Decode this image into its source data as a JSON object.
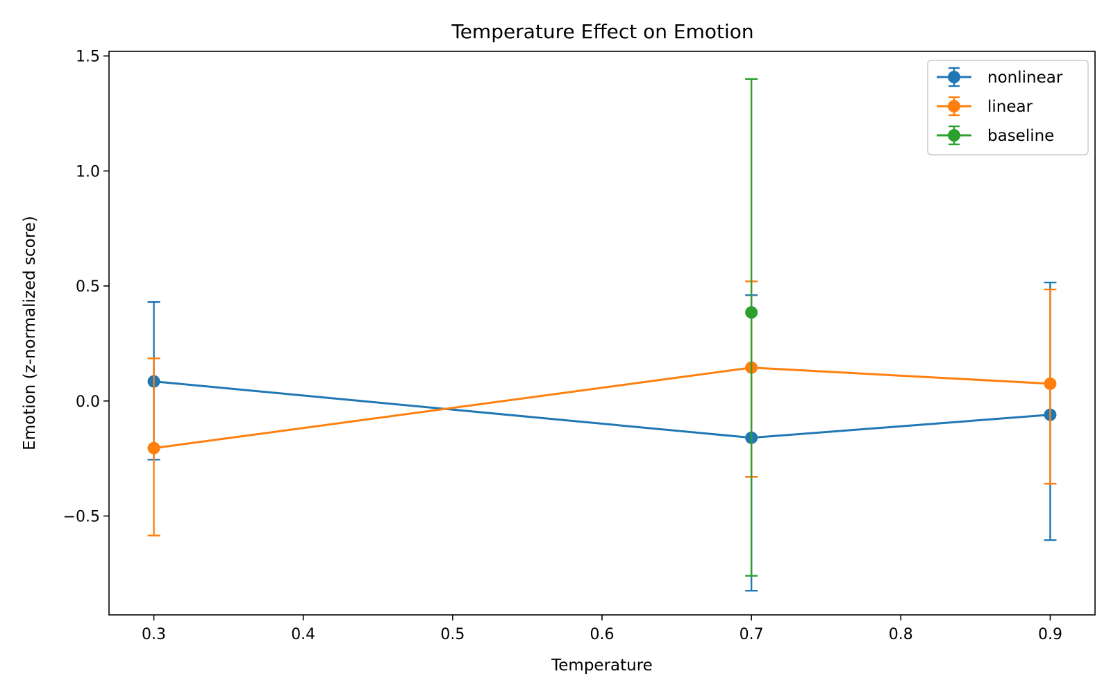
{
  "chart_data": {
    "type": "line",
    "title": "Temperature Effect on Emotion",
    "xlabel": "Temperature",
    "ylabel": "Emotion (z-normalized score)",
    "xlim": [
      0.27,
      0.93
    ],
    "ylim": [
      -0.93,
      1.52
    ],
    "xticks": [
      0.3,
      0.4,
      0.5,
      0.6,
      0.7,
      0.8,
      0.9
    ],
    "xtick_labels": [
      "0.3",
      "0.4",
      "0.5",
      "0.6",
      "0.7",
      "0.8",
      "0.9"
    ],
    "yticks": [
      -0.5,
      0.0,
      0.5,
      1.0,
      1.5
    ],
    "ytick_labels": [
      "−0.5",
      "0.0",
      "0.5",
      "1.0",
      "1.5"
    ],
    "grid": false,
    "legend_position": "top-right",
    "error_bars": true,
    "series": [
      {
        "name": "nonlinear",
        "color": "#1f77b4",
        "x": [
          0.3,
          0.7,
          0.9
        ],
        "y": [
          0.085,
          -0.16,
          -0.06
        ],
        "err_low": [
          -0.255,
          -0.825,
          -0.605
        ],
        "err_high": [
          0.43,
          0.46,
          0.515
        ]
      },
      {
        "name": "linear",
        "color": "#ff7f0e",
        "x": [
          0.3,
          0.7,
          0.9
        ],
        "y": [
          -0.205,
          0.145,
          0.075
        ],
        "err_low": [
          -0.585,
          -0.33,
          -0.36
        ],
        "err_high": [
          0.185,
          0.52,
          0.485
        ]
      },
      {
        "name": "baseline",
        "color": "#2ca02c",
        "x": [
          0.7
        ],
        "y": [
          0.385
        ],
        "err_low": [
          -0.76
        ],
        "err_high": [
          1.4
        ]
      }
    ]
  }
}
